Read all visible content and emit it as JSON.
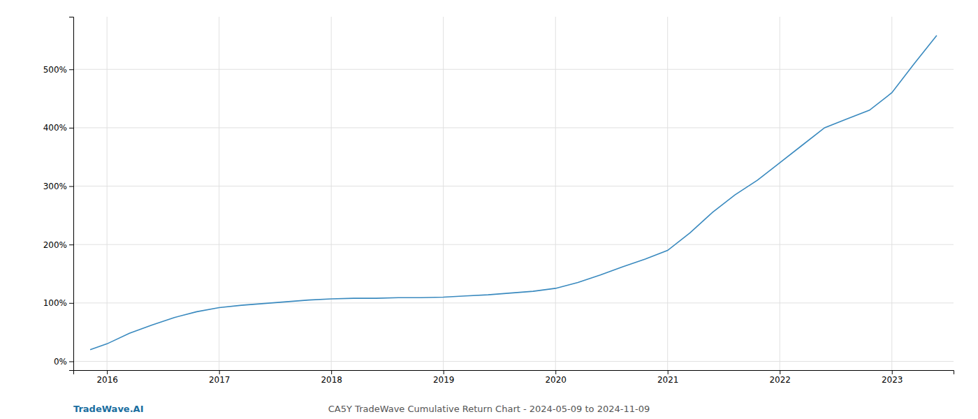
{
  "chart_data": {
    "type": "line",
    "title": "CA5Y TradeWave Cumulative Return Chart - 2024-05-09 to 2024-11-09",
    "annotations": [
      {
        "text": "TradeWave.AI",
        "color": "#1a6ea0"
      }
    ],
    "color": "#3a8abf",
    "x": [
      2015.85,
      2016.0,
      2016.2,
      2016.4,
      2016.6,
      2016.8,
      2017.0,
      2017.2,
      2017.4,
      2017.6,
      2017.8,
      2018.0,
      2018.2,
      2018.4,
      2018.6,
      2018.8,
      2019.0,
      2019.2,
      2019.4,
      2019.6,
      2019.8,
      2020.0,
      2020.2,
      2020.4,
      2020.6,
      2020.8,
      2021.0,
      2021.2,
      2021.4,
      2021.6,
      2021.8,
      2022.0,
      2022.2,
      2022.4,
      2022.6,
      2022.8,
      2023.0,
      2023.2,
      2023.4
    ],
    "values": [
      20,
      30,
      48,
      62,
      75,
      85,
      92,
      96,
      99,
      102,
      105,
      107,
      108,
      108,
      109,
      109,
      110,
      112,
      114,
      117,
      120,
      125,
      135,
      148,
      162,
      175,
      190,
      220,
      255,
      285,
      310,
      340,
      370,
      400,
      415,
      430,
      460,
      510,
      558
    ],
    "xlim": [
      2015.7,
      2023.55
    ],
    "ylim": [
      -15,
      590
    ],
    "xticks": [
      2016,
      2017,
      2018,
      2019,
      2020,
      2021,
      2022,
      2023
    ],
    "yticks": [
      {
        "value": 0,
        "label": "0%"
      },
      {
        "value": 100,
        "label": "100%"
      },
      {
        "value": 200,
        "label": "200%"
      },
      {
        "value": 300,
        "label": "300%"
      },
      {
        "value": 400,
        "label": "400%"
      },
      {
        "value": 500,
        "label": "500%"
      }
    ],
    "grid": true
  }
}
